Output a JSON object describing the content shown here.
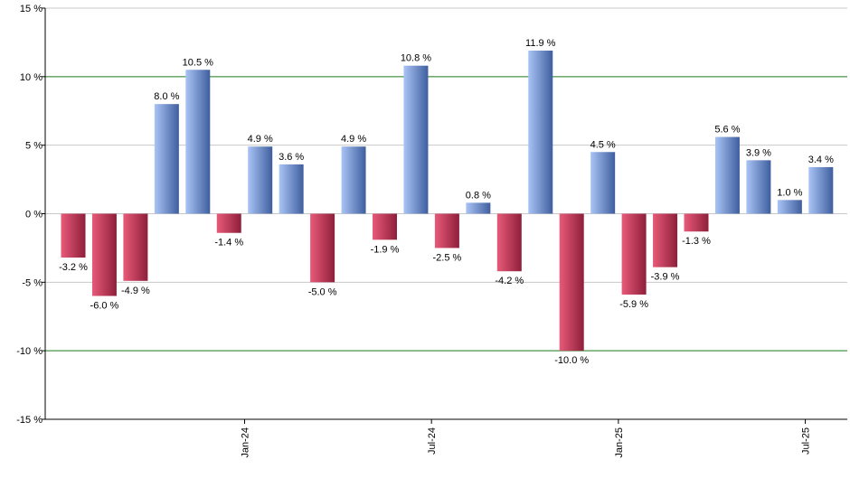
{
  "chart_data": {
    "type": "bar",
    "title": "",
    "xlabel": "",
    "ylabel": "",
    "ylim": [
      -15,
      15
    ],
    "yticks": [
      15,
      10,
      5,
      0,
      -5,
      -10,
      -15
    ],
    "ytick_labels": [
      "15 %",
      "10 %",
      "5 %",
      "0 %",
      "-5 %",
      "-10 %",
      "-15 %"
    ],
    "highlighted_gridlines": [
      10,
      -10
    ],
    "values": [
      -3.2,
      -6.0,
      -4.9,
      8.0,
      10.5,
      -1.4,
      4.9,
      3.6,
      -5.0,
      4.9,
      -1.9,
      10.8,
      -2.5,
      0.8,
      -4.2,
      11.9,
      -10.0,
      4.5,
      -5.9,
      -3.9,
      -1.3,
      5.6,
      3.9,
      1.0,
      3.4
    ],
    "value_labels": [
      "-3.2 %",
      "-6.0 %",
      "-4.9 %",
      "8.0 %",
      "10.5 %",
      "-1.4 %",
      "4.9 %",
      "3.6 %",
      "-5.0 %",
      "4.9 %",
      "-1.9 %",
      "10.8 %",
      "-2.5 %",
      "0.8 %",
      "-4.2 %",
      "11.9 %",
      "-10.0 %",
      "4.5 %",
      "-5.9 %",
      "-3.9 %",
      "-1.3 %",
      "5.6 %",
      "3.9 %",
      "1.0 %",
      "3.4 %"
    ],
    "x_ticks": [
      {
        "label": "Jan-24",
        "index": 6
      },
      {
        "label": "Jul-24",
        "index": 12
      },
      {
        "label": "Jan-25",
        "index": 18
      },
      {
        "label": "Jul-25",
        "index": 24
      }
    ],
    "colors": {
      "positive_dark": "#3f5e9e",
      "positive_light": "#a9c4f5",
      "negative_dark": "#8e1f3a",
      "negative_light": "#e85a79",
      "grid": "#c8c8c8",
      "grid_highlight": "#1a7a1a",
      "axis": "#000000"
    }
  }
}
